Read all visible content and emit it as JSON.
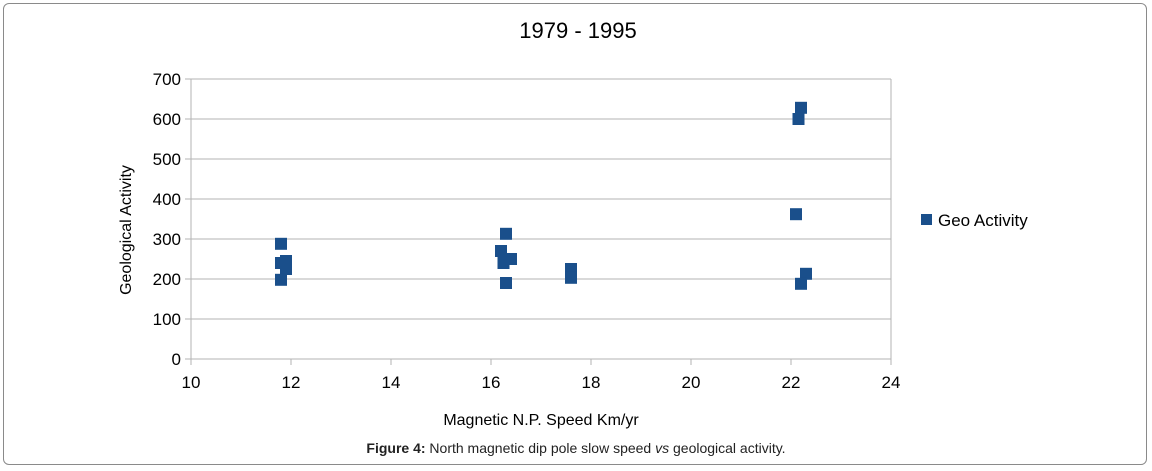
{
  "colors": {
    "series": "#1a4f8b",
    "grid": "#b3b3b3",
    "axis": "#b3b3b3",
    "text": "#000000"
  },
  "chart_data": {
    "type": "scatter",
    "title": "1979 - 1995",
    "xlabel": "Magnetic N.P. Speed Km/yr",
    "ylabel": "Geological Activity",
    "xlim": [
      10,
      24
    ],
    "ylim": [
      0,
      700
    ],
    "xticks": [
      "10",
      "12",
      "14",
      "16",
      "18",
      "20",
      "22",
      "24"
    ],
    "yticks": [
      "0",
      "100",
      "200",
      "300",
      "400",
      "500",
      "600",
      "700"
    ],
    "grid": true,
    "legend_position": "right",
    "series": [
      {
        "name": "Geo Activity",
        "color": "#1a4f8b",
        "marker": "square",
        "points": [
          {
            "x": 11.8,
            "y": 288
          },
          {
            "x": 11.8,
            "y": 240
          },
          {
            "x": 11.9,
            "y": 245
          },
          {
            "x": 11.9,
            "y": 225
          },
          {
            "x": 11.8,
            "y": 198
          },
          {
            "x": 16.3,
            "y": 313
          },
          {
            "x": 16.2,
            "y": 270
          },
          {
            "x": 16.25,
            "y": 240
          },
          {
            "x": 16.4,
            "y": 250
          },
          {
            "x": 16.3,
            "y": 190
          },
          {
            "x": 17.6,
            "y": 225
          },
          {
            "x": 17.6,
            "y": 203
          },
          {
            "x": 22.2,
            "y": 628
          },
          {
            "x": 22.15,
            "y": 600
          },
          {
            "x": 22.1,
            "y": 362
          },
          {
            "x": 22.3,
            "y": 213
          },
          {
            "x": 22.2,
            "y": 188
          }
        ]
      }
    ]
  },
  "caption": {
    "label": "Figure 4:",
    "text_before": " North magnetic dip pole slow speed ",
    "emphasis": "vs",
    "text_after": " geological activity."
  }
}
